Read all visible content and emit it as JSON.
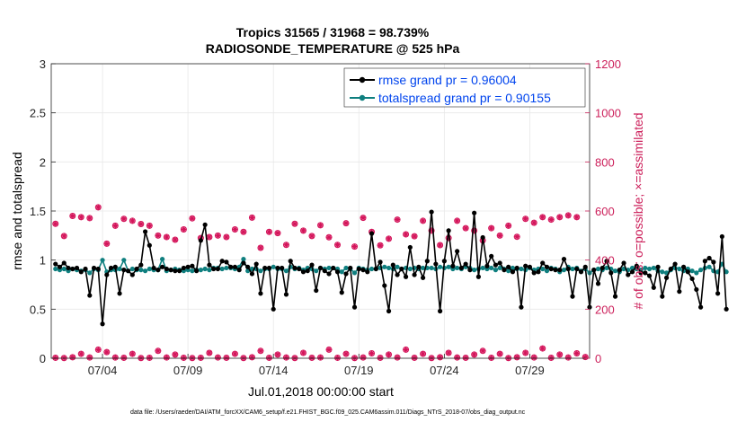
{
  "chart_data": {
    "type": "line",
    "title_line1": "Tropics 31565 / 31968 = 98.739%",
    "title_line2": "RADIOSONDE_TEMPERATURE @ 525 hPa",
    "xlabel": "Jul.01,2018 00:00:00 start",
    "ylabel": "rmse and totalspread",
    "ylabel_right": "# of obs: o=possible; ×=assimilated",
    "footer": "data file: /Users/raeder/DAI/ATM_forcXX/CAM6_setup/f.e21.FHIST_BGC.f09_025.CAM6assim.011/Diags_NTrS_2018-07/obs_diag_output.nc",
    "xlim": [
      1,
      32.5
    ],
    "ylim": [
      0,
      3
    ],
    "ylim_right": [
      0,
      1200
    ],
    "yticks": [
      "0",
      "0.5",
      "1",
      "1.5",
      "2",
      "2.5",
      "3"
    ],
    "yticks_right": [
      "0",
      "200",
      "400",
      "600",
      "800",
      "1000",
      "1200"
    ],
    "xticks": [
      {
        "value": 4,
        "label": "07/04"
      },
      {
        "value": 9,
        "label": "07/09"
      },
      {
        "value": 14,
        "label": "07/14"
      },
      {
        "value": 19,
        "label": "07/19"
      },
      {
        "value": 24,
        "label": "07/24"
      },
      {
        "value": 29,
        "label": "07/29"
      }
    ],
    "legend": [
      {
        "label": "rmse grand pr = 0.96004",
        "color": "#000000"
      },
      {
        "label": "totalspread grand pr = 0.90155",
        "color": "#0f7f7f"
      }
    ],
    "colors": {
      "rmse": "#000000",
      "spread": "#0f7f7f",
      "obs": "#d4145a",
      "grid": "#e8e8e8"
    },
    "x_start": 1.25,
    "x_step": 0.25,
    "series": [
      {
        "name": "rmse",
        "values": [
          0.96,
          0.93,
          0.97,
          0.92,
          0.91,
          0.92,
          0.88,
          0.91,
          0.64,
          0.92,
          0.91,
          0.35,
          0.85,
          0.92,
          0.93,
          0.66,
          0.9,
          0.89,
          0.85,
          0.91,
          0.95,
          1.29,
          1.15,
          0.92,
          0.9,
          0.93,
          0.91,
          0.9,
          0.89,
          0.89,
          0.92,
          0.93,
          0.94,
          0.89,
          1.2,
          1.36,
          0.95,
          0.91,
          0.91,
          0.99,
          0.98,
          0.93,
          0.93,
          0.9,
          0.97,
          0.93,
          0.86,
          0.96,
          0.66,
          0.92,
          0.92,
          0.5,
          0.92,
          0.92,
          0.65,
          0.99,
          0.92,
          0.91,
          0.88,
          0.89,
          0.95,
          0.69,
          0.92,
          0.89,
          0.86,
          0.92,
          0.88,
          0.67,
          0.86,
          0.92,
          0.52,
          0.91,
          0.9,
          0.88,
          1.27,
          0.91,
          0.98,
          0.74,
          0.48,
          0.95,
          0.85,
          0.91,
          0.83,
          1.13,
          0.85,
          0.93,
          0.82,
          0.99,
          1.49,
          0.96,
          0.48,
          0.99,
          1.3,
          0.94,
          1.09,
          0.92,
          0.96,
          0.9,
          1.48,
          0.83,
          1.23,
          0.94,
          1.04,
          0.95,
          0.97,
          0.9,
          0.93,
          0.88,
          0.92,
          0.52,
          0.94,
          0.93,
          0.87,
          0.88,
          0.97,
          0.93,
          0.91,
          0.9,
          0.9,
          1.01,
          0.91,
          0.63,
          0.91,
          0.88,
          0.93,
          0.52,
          0.9,
          0.76,
          0.92,
          0.99,
          0.87,
          0.63,
          0.9,
          0.97,
          0.85,
          0.88,
          0.94,
          0.87,
          0.87,
          0.84,
          0.72,
          0.93,
          0.63,
          0.82,
          0.91,
          0.96,
          0.68,
          0.93,
          0.88,
          0.81,
          0.7,
          0.52,
          0.99,
          1.02,
          0.98,
          0.66,
          1.24,
          0.5
        ]
      },
      {
        "name": "totalspread",
        "values": [
          0.91,
          0.9,
          0.91,
          0.89,
          0.91,
          0.9,
          0.89,
          0.9,
          0.87,
          0.91,
          0.9,
          1.0,
          0.88,
          0.9,
          0.9,
          0.91,
          1.0,
          0.89,
          0.91,
          0.9,
          0.9,
          0.89,
          0.91,
          0.9,
          0.9,
          1.01,
          0.89,
          0.9,
          0.91,
          0.9,
          0.89,
          0.9,
          0.89,
          0.9,
          0.9,
          0.91,
          0.9,
          0.92,
          0.92,
          0.91,
          0.92,
          0.92,
          0.91,
          0.93,
          1.01,
          0.89,
          0.91,
          0.91,
          0.89,
          0.91,
          0.91,
          0.93,
          0.91,
          0.91,
          0.89,
          0.93,
          0.91,
          0.92,
          0.9,
          0.92,
          0.91,
          0.89,
          0.92,
          0.91,
          0.92,
          0.92,
          0.91,
          0.88,
          0.92,
          0.91,
          0.87,
          0.92,
          0.91,
          0.9,
          0.91,
          0.91,
          0.92,
          0.93,
          0.92,
          0.91,
          0.93,
          0.91,
          0.92,
          0.91,
          0.92,
          0.91,
          0.92,
          0.92,
          0.92,
          0.91,
          0.93,
          0.92,
          0.93,
          0.91,
          0.92,
          0.91,
          0.93,
          0.92,
          0.9,
          0.91,
          0.92,
          0.91,
          0.92,
          0.9,
          0.92,
          0.91,
          0.89,
          0.92,
          0.91,
          0.91,
          0.9,
          0.92,
          0.9,
          0.91,
          0.91,
          0.89,
          0.92,
          0.91,
          0.88,
          0.9,
          0.93,
          0.91,
          0.92,
          0.89,
          0.91,
          0.87,
          0.9,
          0.91,
          0.9,
          0.92,
          0.91,
          0.89,
          0.88,
          0.91,
          0.9,
          0.92,
          0.91,
          0.9,
          0.92,
          0.91,
          0.92,
          0.89,
          0.88,
          0.87,
          0.9,
          0.92,
          0.91,
          0.89,
          0.91,
          0.89,
          0.87,
          0.9,
          0.92,
          0.93,
          0.89,
          0.88,
          0.96,
          0.88
        ]
      },
      {
        "name": "obs_count_possible",
        "axis": "right",
        "day_values": [
          [
            1.25,
            548
          ],
          [
            1.75,
            498
          ],
          [
            2.25,
            580
          ],
          [
            2.75,
            575
          ],
          [
            3.25,
            571
          ],
          [
            3.75,
            615
          ],
          [
            4.25,
            467
          ],
          [
            4.75,
            540
          ],
          [
            5.25,
            568
          ],
          [
            5.75,
            560
          ],
          [
            6.25,
            547
          ],
          [
            6.75,
            540
          ],
          [
            7.25,
            500
          ],
          [
            7.75,
            494
          ],
          [
            8.25,
            483
          ],
          [
            8.75,
            525
          ],
          [
            9.25,
            570
          ],
          [
            9.75,
            490
          ],
          [
            10.25,
            494
          ],
          [
            10.75,
            500
          ],
          [
            11.25,
            494
          ],
          [
            11.75,
            525
          ],
          [
            12.25,
            515
          ],
          [
            12.75,
            573
          ],
          [
            13.25,
            450
          ],
          [
            13.75,
            515
          ],
          [
            14.25,
            510
          ],
          [
            14.75,
            462
          ],
          [
            15.25,
            548
          ],
          [
            15.75,
            520
          ],
          [
            16.25,
            498
          ],
          [
            16.75,
            542
          ],
          [
            17.25,
            493
          ],
          [
            17.75,
            462
          ],
          [
            18.25,
            550
          ],
          [
            18.75,
            455
          ],
          [
            19.25,
            572
          ],
          [
            19.75,
            515
          ],
          [
            20.25,
            460
          ],
          [
            20.75,
            487
          ],
          [
            21.25,
            565
          ],
          [
            21.75,
            505
          ],
          [
            22.25,
            497
          ],
          [
            22.75,
            560
          ],
          [
            23.25,
            520
          ],
          [
            23.75,
            461
          ],
          [
            24.25,
            490
          ],
          [
            24.75,
            560
          ],
          [
            25.25,
            530
          ],
          [
            25.75,
            520
          ],
          [
            26.25,
            480
          ],
          [
            26.75,
            530
          ],
          [
            27.25,
            500
          ],
          [
            27.75,
            540
          ],
          [
            28.25,
            495
          ],
          [
            28.75,
            568
          ],
          [
            29.25,
            552
          ],
          [
            29.75,
            575
          ],
          [
            30.25,
            565
          ],
          [
            30.75,
            575
          ],
          [
            31.25,
            582
          ],
          [
            31.75,
            575
          ]
        ]
      },
      {
        "name": "obs_count_small",
        "axis": "right",
        "day_values": [
          [
            1.25,
            2
          ],
          [
            1.75,
            1
          ],
          [
            2.25,
            4
          ],
          [
            2.75,
            18
          ],
          [
            3.25,
            3
          ],
          [
            3.75,
            35
          ],
          [
            4.25,
            25
          ],
          [
            4.75,
            3
          ],
          [
            5.25,
            2
          ],
          [
            5.75,
            18
          ],
          [
            6.25,
            1
          ],
          [
            6.75,
            2
          ],
          [
            7.25,
            30
          ],
          [
            7.75,
            3
          ],
          [
            8.25,
            15
          ],
          [
            8.75,
            2
          ],
          [
            9.25,
            1
          ],
          [
            9.75,
            2
          ],
          [
            10.25,
            22
          ],
          [
            10.75,
            3
          ],
          [
            11.25,
            2
          ],
          [
            11.75,
            18
          ],
          [
            12.25,
            1
          ],
          [
            12.75,
            4
          ],
          [
            13.25,
            30
          ],
          [
            13.75,
            2
          ],
          [
            14.25,
            15
          ],
          [
            14.75,
            3
          ],
          [
            15.25,
            1
          ],
          [
            15.75,
            22
          ],
          [
            16.25,
            2
          ],
          [
            16.75,
            3
          ],
          [
            17.25,
            35
          ],
          [
            17.75,
            2
          ],
          [
            18.25,
            18
          ],
          [
            18.75,
            1
          ],
          [
            19.25,
            3
          ],
          [
            19.75,
            20
          ],
          [
            20.25,
            2
          ],
          [
            20.75,
            15
          ],
          [
            21.25,
            3
          ],
          [
            21.75,
            35
          ],
          [
            22.25,
            2
          ],
          [
            22.75,
            18
          ],
          [
            23.25,
            1
          ],
          [
            23.75,
            4
          ],
          [
            24.25,
            22
          ],
          [
            24.75,
            3
          ],
          [
            25.25,
            2
          ],
          [
            25.75,
            15
          ],
          [
            26.25,
            30
          ],
          [
            26.75,
            2
          ],
          [
            27.25,
            18
          ],
          [
            27.75,
            1
          ],
          [
            28.25,
            4
          ],
          [
            28.75,
            22
          ],
          [
            29.25,
            3
          ],
          [
            29.75,
            40
          ],
          [
            30.25,
            2
          ],
          [
            30.75,
            15
          ],
          [
            31.25,
            3
          ],
          [
            31.75,
            20
          ],
          [
            32.25,
            5
          ]
        ]
      }
    ]
  }
}
